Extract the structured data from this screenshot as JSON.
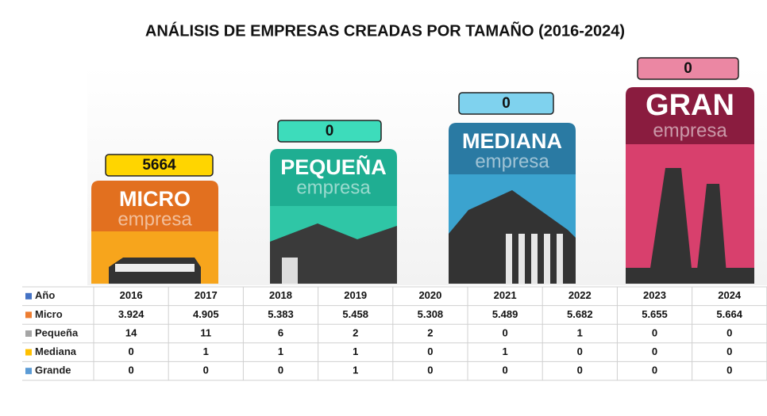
{
  "title": "ANÁLISIS DE EMPRESAS CREADAS POR TAMAÑO (2016-2024)",
  "cards": [
    {
      "value": "5664",
      "name": "MICRO",
      "subtitle": "empresa"
    },
    {
      "value": "0",
      "name": "PEQUEÑA",
      "subtitle": "empresa"
    },
    {
      "value": "0",
      "name": "MEDIANA",
      "subtitle": "empresa"
    },
    {
      "value": "0",
      "name": "GRAN",
      "subtitle": "empresa"
    }
  ],
  "table": {
    "header": [
      "Año",
      "2016",
      "2017",
      "2018",
      "2019",
      "2020",
      "2021",
      "2022",
      "2023",
      "2024"
    ],
    "rows": [
      [
        "Micro",
        "3.924",
        "4.905",
        "5.383",
        "5.458",
        "5.308",
        "5.489",
        "5.682",
        "5.655",
        "5.664"
      ],
      [
        "Pequeña",
        "14",
        "11",
        "6",
        "2",
        "2",
        "0",
        "1",
        "0",
        "0"
      ],
      [
        "Mediana",
        "0",
        "1",
        "1",
        "1",
        "0",
        "1",
        "0",
        "0",
        "0"
      ],
      [
        "Grande",
        "0",
        "0",
        "0",
        "1",
        "0",
        "0",
        "0",
        "0",
        "0"
      ]
    ]
  }
}
